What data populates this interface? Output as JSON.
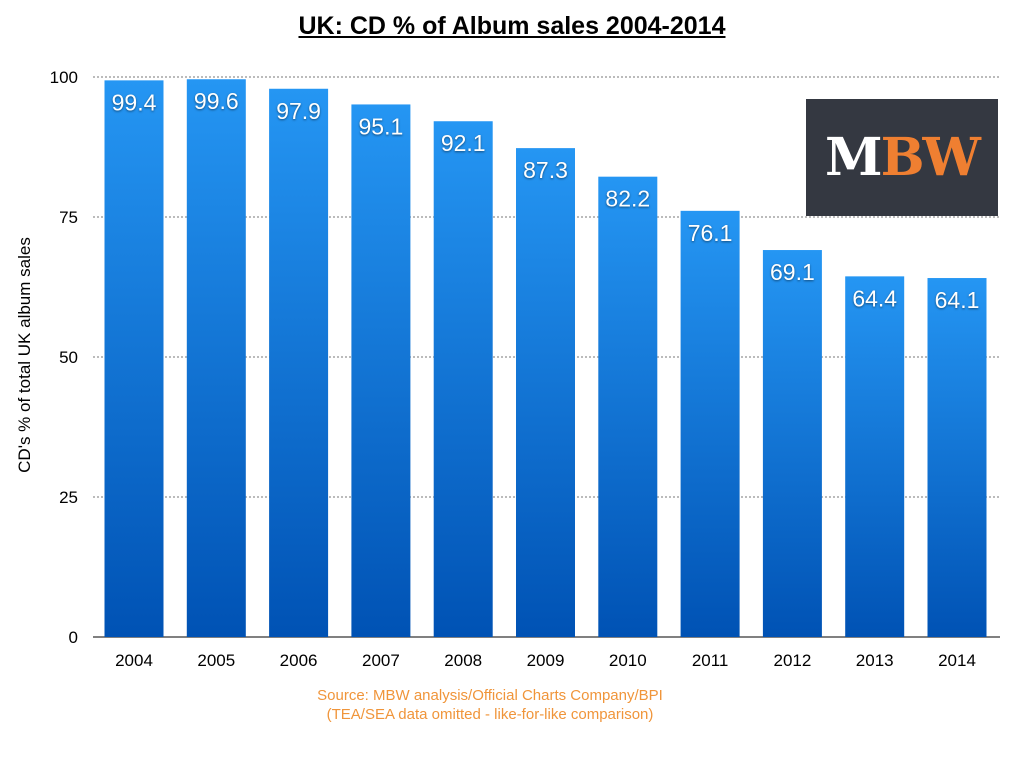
{
  "chart_data": {
    "type": "bar",
    "title": "UK: CD % of Album sales 2004-2014",
    "xlabel": "",
    "ylabel": "CD's % of total UK album sales",
    "categories": [
      "2004",
      "2005",
      "2006",
      "2007",
      "2008",
      "2009",
      "2010",
      "2011",
      "2012",
      "2013",
      "2014"
    ],
    "values": [
      99.4,
      99.6,
      97.9,
      95.1,
      92.1,
      87.3,
      82.2,
      76.1,
      69.1,
      64.4,
      64.1
    ],
    "ylim": [
      0,
      100
    ],
    "yticks": [
      0,
      25,
      50,
      75,
      100
    ],
    "grid": true,
    "bar_color_top": "#2596f3",
    "bar_color_bottom": "#0052b4"
  },
  "source": {
    "line1": "Source: MBW analysis/Official Charts Company/BPI",
    "line2": "(TEA/SEA data omitted - like-for-like comparison)"
  },
  "logo": {
    "text_white": "M",
    "text_orange": "BW"
  }
}
